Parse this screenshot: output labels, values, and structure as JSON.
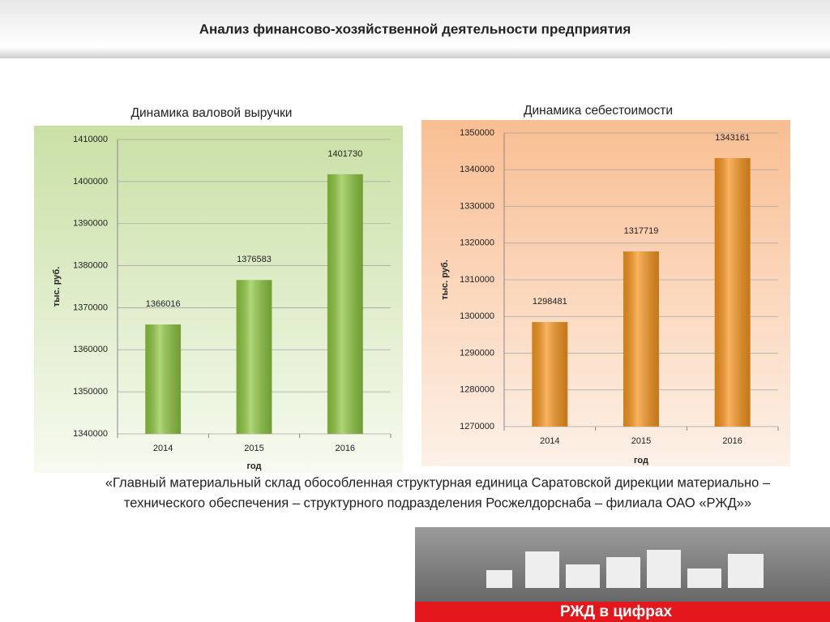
{
  "header": {
    "title": "Анализ финансово-хозяйственной деятельности предприятия"
  },
  "chart_data": [
    {
      "type": "bar",
      "title": "Динамика валовой выручки",
      "categories": [
        "2014",
        "2015",
        "2016"
      ],
      "values": [
        1366016,
        1376583,
        1401730
      ],
      "color": "#8cc63f",
      "ylim": [
        1340000,
        1410000
      ],
      "yticks": [
        1340000,
        1350000,
        1360000,
        1370000,
        1380000,
        1390000,
        1400000,
        1410000
      ],
      "xlabel": "год",
      "ylabel": "тыс. руб.",
      "grid": true
    },
    {
      "type": "bar",
      "title": "Динамика себестоимости",
      "categories": [
        "2014",
        "2015",
        "2016"
      ],
      "values": [
        1298481,
        1317719,
        1343161
      ],
      "color": "#f7941d",
      "ylim": [
        1270000,
        1350000
      ],
      "yticks": [
        1270000,
        1280000,
        1290000,
        1300000,
        1310000,
        1320000,
        1330000,
        1340000,
        1350000
      ],
      "xlabel": "год",
      "ylabel": "тыс. руб.",
      "grid": true
    }
  ],
  "caption": [
    "«Главный материальный склад обособленная структурная единица Саратовской дирекции материально –",
    "технического обеспечения – структурного подразделения Росжелдорснаба – филиала ОАО «РЖД»»"
  ],
  "banner": "РЖД в цифрах"
}
